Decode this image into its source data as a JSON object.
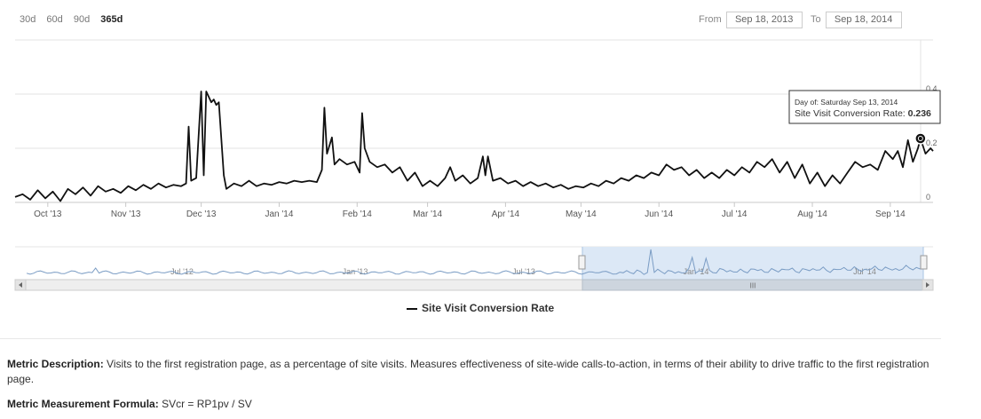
{
  "range_buttons": [
    {
      "label": "30d",
      "active": false
    },
    {
      "label": "60d",
      "active": false
    },
    {
      "label": "90d",
      "active": false
    },
    {
      "label": "365d",
      "active": true
    }
  ],
  "date_range": {
    "from_label": "From",
    "from_value": "Sep 18, 2013",
    "to_label": "To",
    "to_value": "Sep 18, 2014"
  },
  "tooltip": {
    "line1": "Day of: Saturday Sep 13, 2014",
    "line2_label": "Site Visit Conversion Rate: ",
    "line2_value": "0.236"
  },
  "navigator": {
    "tick_labels": [
      "Jul '12",
      "Jan '13",
      "Jul '13",
      "Jan '14",
      "Jul '14"
    ],
    "scrollbar_grip": "III"
  },
  "legend": {
    "label": "Site Visit Conversion Rate"
  },
  "metric": {
    "description_label": "Metric Description:",
    "description_text": "Visits to the first registration page, as a percentage of site visits. Measures effectiveness of site-wide calls-to-action, in terms of their ability to drive traffic to the first registration page.",
    "formula_label": "Metric Measurement Formula:",
    "formula_text": "SVcr = RP1pv / SV"
  },
  "colors": {
    "line": "#111111",
    "navigator_fill": "#dce8f6",
    "grid": "#e3e3e3",
    "tooltip_border": "#333333"
  },
  "chart_data": {
    "type": "line",
    "series_name": "Site Visit Conversion Rate",
    "x_tick_labels": [
      "Oct '13",
      "Nov '13",
      "Dec '13",
      "Jan '14",
      "Feb '14",
      "Mar '14",
      "Apr '14",
      "May '14",
      "Jun '14",
      "Jul '14",
      "Aug '14",
      "Sep '14"
    ],
    "x_tick_dates": [
      "2013-10-01",
      "2013-11-01",
      "2013-12-01",
      "2014-01-01",
      "2014-02-01",
      "2014-03-01",
      "2014-04-01",
      "2014-05-01",
      "2014-06-01",
      "2014-07-01",
      "2014-08-01",
      "2014-09-01"
    ],
    "y_tick_labels": [
      "0",
      "0.2",
      "0.4"
    ],
    "ylim": [
      0,
      0.4
    ],
    "x_range": [
      "2013-09-18",
      "2014-09-18"
    ],
    "grid": true,
    "legend_position": "bottom-center",
    "highlight": {
      "date": "2014-09-13",
      "value": 0.236
    },
    "points": [
      [
        "2013-09-18",
        0.02
      ],
      [
        "2013-09-21",
        0.03
      ],
      [
        "2013-09-24",
        0.01
      ],
      [
        "2013-09-27",
        0.045
      ],
      [
        "2013-09-30",
        0.015
      ],
      [
        "2013-10-03",
        0.04
      ],
      [
        "2013-10-06",
        0.005
      ],
      [
        "2013-10-09",
        0.05
      ],
      [
        "2013-10-12",
        0.03
      ],
      [
        "2013-10-15",
        0.055
      ],
      [
        "2013-10-18",
        0.025
      ],
      [
        "2013-10-21",
        0.06
      ],
      [
        "2013-10-24",
        0.04
      ],
      [
        "2013-10-27",
        0.05
      ],
      [
        "2013-10-30",
        0.035
      ],
      [
        "2013-11-02",
        0.06
      ],
      [
        "2013-11-05",
        0.045
      ],
      [
        "2013-11-08",
        0.065
      ],
      [
        "2013-11-11",
        0.05
      ],
      [
        "2013-11-14",
        0.07
      ],
      [
        "2013-11-17",
        0.055
      ],
      [
        "2013-11-20",
        0.065
      ],
      [
        "2013-11-23",
        0.06
      ],
      [
        "2013-11-25",
        0.07
      ],
      [
        "2013-11-26",
        0.28
      ],
      [
        "2013-11-27",
        0.08
      ],
      [
        "2013-11-29",
        0.09
      ],
      [
        "2013-12-01",
        0.41
      ],
      [
        "2013-12-02",
        0.1
      ],
      [
        "2013-12-03",
        0.41
      ],
      [
        "2013-12-05",
        0.37
      ],
      [
        "2013-12-06",
        0.38
      ],
      [
        "2013-12-07",
        0.36
      ],
      [
        "2013-12-08",
        0.37
      ],
      [
        "2013-12-10",
        0.1
      ],
      [
        "2013-12-11",
        0.05
      ],
      [
        "2013-12-14",
        0.07
      ],
      [
        "2013-12-17",
        0.06
      ],
      [
        "2013-12-20",
        0.08
      ],
      [
        "2013-12-23",
        0.06
      ],
      [
        "2013-12-26",
        0.07
      ],
      [
        "2013-12-29",
        0.065
      ],
      [
        "2014-01-01",
        0.075
      ],
      [
        "2014-01-04",
        0.07
      ],
      [
        "2014-01-07",
        0.08
      ],
      [
        "2014-01-10",
        0.075
      ],
      [
        "2014-01-13",
        0.08
      ],
      [
        "2014-01-16",
        0.075
      ],
      [
        "2014-01-18",
        0.12
      ],
      [
        "2014-01-19",
        0.35
      ],
      [
        "2014-01-20",
        0.18
      ],
      [
        "2014-01-22",
        0.24
      ],
      [
        "2014-01-23",
        0.14
      ],
      [
        "2014-01-25",
        0.16
      ],
      [
        "2014-01-28",
        0.14
      ],
      [
        "2014-01-31",
        0.15
      ],
      [
        "2014-02-02",
        0.11
      ],
      [
        "2014-02-03",
        0.33
      ],
      [
        "2014-02-04",
        0.2
      ],
      [
        "2014-02-06",
        0.15
      ],
      [
        "2014-02-09",
        0.13
      ],
      [
        "2014-02-12",
        0.14
      ],
      [
        "2014-02-15",
        0.11
      ],
      [
        "2014-02-18",
        0.13
      ],
      [
        "2014-02-21",
        0.08
      ],
      [
        "2014-02-24",
        0.11
      ],
      [
        "2014-02-27",
        0.06
      ],
      [
        "2014-03-02",
        0.08
      ],
      [
        "2014-03-05",
        0.06
      ],
      [
        "2014-03-08",
        0.09
      ],
      [
        "2014-03-10",
        0.13
      ],
      [
        "2014-03-12",
        0.08
      ],
      [
        "2014-03-15",
        0.1
      ],
      [
        "2014-03-18",
        0.07
      ],
      [
        "2014-03-21",
        0.09
      ],
      [
        "2014-03-23",
        0.17
      ],
      [
        "2014-03-24",
        0.1
      ],
      [
        "2014-03-25",
        0.17
      ],
      [
        "2014-03-27",
        0.08
      ],
      [
        "2014-03-30",
        0.09
      ],
      [
        "2014-04-02",
        0.07
      ],
      [
        "2014-04-05",
        0.08
      ],
      [
        "2014-04-08",
        0.06
      ],
      [
        "2014-04-11",
        0.075
      ],
      [
        "2014-04-14",
        0.06
      ],
      [
        "2014-04-17",
        0.07
      ],
      [
        "2014-04-20",
        0.055
      ],
      [
        "2014-04-23",
        0.065
      ],
      [
        "2014-04-26",
        0.05
      ],
      [
        "2014-04-29",
        0.06
      ],
      [
        "2014-05-02",
        0.055
      ],
      [
        "2014-05-05",
        0.07
      ],
      [
        "2014-05-08",
        0.06
      ],
      [
        "2014-05-11",
        0.08
      ],
      [
        "2014-05-14",
        0.07
      ],
      [
        "2014-05-17",
        0.09
      ],
      [
        "2014-05-20",
        0.08
      ],
      [
        "2014-05-23",
        0.1
      ],
      [
        "2014-05-26",
        0.09
      ],
      [
        "2014-05-29",
        0.11
      ],
      [
        "2014-06-01",
        0.1
      ],
      [
        "2014-06-04",
        0.14
      ],
      [
        "2014-06-07",
        0.12
      ],
      [
        "2014-06-10",
        0.13
      ],
      [
        "2014-06-13",
        0.1
      ],
      [
        "2014-06-16",
        0.12
      ],
      [
        "2014-06-19",
        0.09
      ],
      [
        "2014-06-22",
        0.11
      ],
      [
        "2014-06-25",
        0.09
      ],
      [
        "2014-06-28",
        0.12
      ],
      [
        "2014-07-01",
        0.1
      ],
      [
        "2014-07-04",
        0.13
      ],
      [
        "2014-07-07",
        0.11
      ],
      [
        "2014-07-10",
        0.15
      ],
      [
        "2014-07-13",
        0.13
      ],
      [
        "2014-07-16",
        0.16
      ],
      [
        "2014-07-19",
        0.11
      ],
      [
        "2014-07-22",
        0.15
      ],
      [
        "2014-07-25",
        0.09
      ],
      [
        "2014-07-28",
        0.14
      ],
      [
        "2014-07-31",
        0.07
      ],
      [
        "2014-08-03",
        0.11
      ],
      [
        "2014-08-06",
        0.06
      ],
      [
        "2014-08-09",
        0.1
      ],
      [
        "2014-08-12",
        0.07
      ],
      [
        "2014-08-15",
        0.11
      ],
      [
        "2014-08-18",
        0.15
      ],
      [
        "2014-08-21",
        0.13
      ],
      [
        "2014-08-24",
        0.14
      ],
      [
        "2014-08-27",
        0.12
      ],
      [
        "2014-08-30",
        0.19
      ],
      [
        "2014-09-02",
        0.16
      ],
      [
        "2014-09-04",
        0.19
      ],
      [
        "2014-09-06",
        0.13
      ],
      [
        "2014-09-08",
        0.23
      ],
      [
        "2014-09-10",
        0.15
      ],
      [
        "2014-09-12",
        0.2
      ],
      [
        "2014-09-13",
        0.236
      ],
      [
        "2014-09-15",
        0.18
      ],
      [
        "2014-09-17",
        0.2
      ],
      [
        "2014-09-18",
        0.19
      ]
    ]
  }
}
